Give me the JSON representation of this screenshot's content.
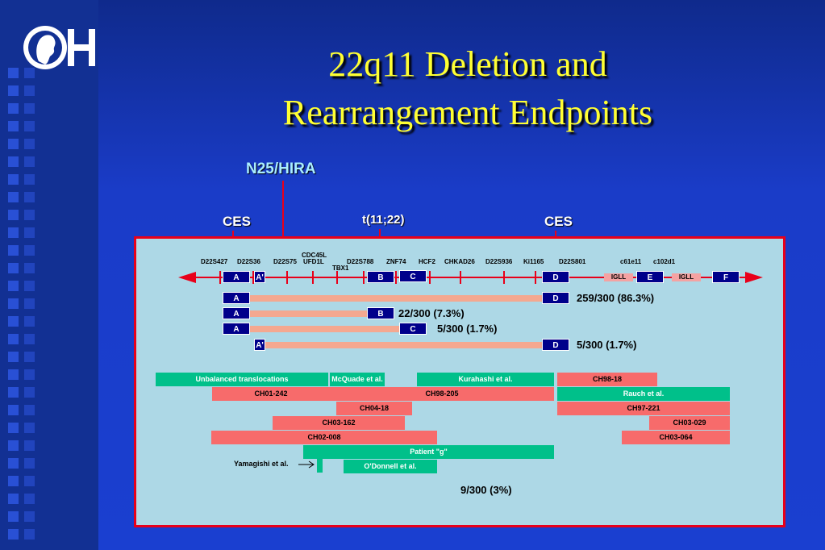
{
  "title_line1": "22q11 Deletion and",
  "title_line2": "Rearrangement Endpoints",
  "logo_text": "CH",
  "callouts": {
    "hira": "N25/HIRA",
    "ces_left": "CES",
    "translocation": "t(11;22)",
    "ces_right": "CES"
  },
  "markers": {
    "d22s427": "D22S427",
    "d22s36": "D22S36",
    "d22s75": "D22S75",
    "cdc45l": "CDC45L",
    "ufd1l": "UFD1L",
    "tbx1": "TBX1",
    "d22s788": "D22S788",
    "znf74": "ZNF74",
    "hcf2": "HCF2",
    "chkad26": "CHKAD26",
    "d22s936": "D22S936",
    "ki1165": "Ki1165",
    "d22s801": "D22S801",
    "c61e11": "c61e11",
    "c102d1": "c102d1"
  },
  "blocks": {
    "a": "A",
    "a_prime": "A'",
    "b": "B",
    "c": "C",
    "d": "D",
    "e": "E",
    "f": "F",
    "igll": "IGLL"
  },
  "deletion_percentages": {
    "ad": "259/300 (86.3%)",
    "ab": "22/300 (7.3%)",
    "ac": "5/300 (1.7%)",
    "apd": "5/300 (1.7%)"
  },
  "other_total": "9/300 (3%)",
  "study_labels": {
    "unbalanced": "Unbalanced translocations",
    "mcquade": "McQuade et al.",
    "kurahashi": "Kurahashi et al.",
    "ch98_18": "CH98-18",
    "ch01_242": "CH01-242",
    "ch98_205": "CH98-205",
    "rauch": "Rauch et al.",
    "ch04_18": "CH04-18",
    "ch97_221": "CH97-221",
    "ch03_162": "CH03-162",
    "ch03_029": "CH03-029",
    "ch02_008": "CH02-008",
    "ch03_064": "CH03-064",
    "patient_g": "Patient \"g\"",
    "yamagishi": "Yamagishi et al.",
    "odonnell": "O'Donnell et al."
  },
  "colors": {
    "background": "#1a3cc8",
    "title": "#ffff33",
    "panel": "#add8e6",
    "border": "#e8001a",
    "teal": "#00c08a",
    "salmon": "#f76b6b"
  }
}
